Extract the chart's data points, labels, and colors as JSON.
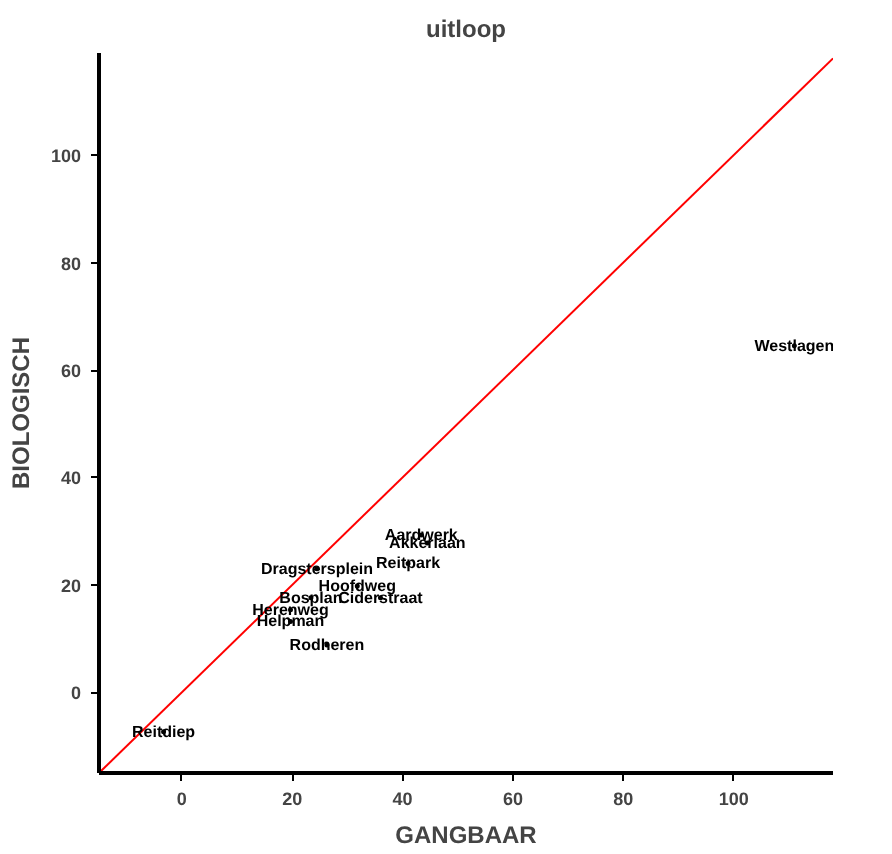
{
  "chart_data": {
    "type": "scatter",
    "title": "uitloop",
    "xlabel": "GANGBAAR",
    "ylabel": "BIOLOGISCH",
    "xlim": [
      -15,
      118
    ],
    "ylim": [
      -15,
      119
    ],
    "xticks": [
      0,
      20,
      40,
      60,
      80,
      100
    ],
    "yticks": [
      0,
      20,
      40,
      60,
      80,
      100
    ],
    "grid": false,
    "series": [
      {
        "color": "#000000",
        "x": [
          -3.3,
          111,
          43.4,
          44.5,
          24.5,
          41,
          31.8,
          36,
          23.4,
          19.7,
          19.7,
          26.3
        ],
        "values": [
          -7.3,
          64.5,
          29.3,
          27.8,
          23,
          24,
          19.8,
          17.6,
          17.6,
          15.4,
          13.2,
          8.8
        ],
        "value_labels": [
          "Reitdiep",
          "Westlagen",
          "Aardwerk",
          "Akkerlaan",
          "Dragstersplein",
          "Reitpark",
          "Hoofdweg",
          "Ciderstraat",
          "Bosplan",
          "Herenweg",
          "Helpman",
          "Rodheren"
        ]
      },
      {
        "type": "line",
        "color": "#ff0000",
        "x": [
          -15,
          118
        ],
        "values": [
          -15,
          118
        ]
      }
    ]
  }
}
